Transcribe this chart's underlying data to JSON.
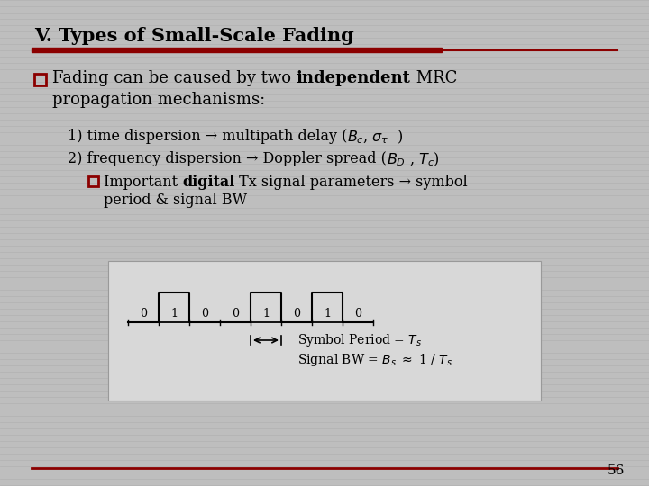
{
  "title": "V. Types of Small-Scale Fading",
  "title_color": "#000000",
  "title_line_color": "#8B0000",
  "slide_bg": "#BEBEBE",
  "stripe_color": "#B8B8B8",
  "bullet_color": "#8B0000",
  "text_color": "#000000",
  "page_number": "56",
  "diagram_bits": [
    "0",
    "1",
    "0",
    "0",
    "1",
    "0",
    "1",
    "0"
  ],
  "diagram_highs": [
    0,
    1,
    0,
    0,
    1,
    0,
    1,
    0
  ]
}
